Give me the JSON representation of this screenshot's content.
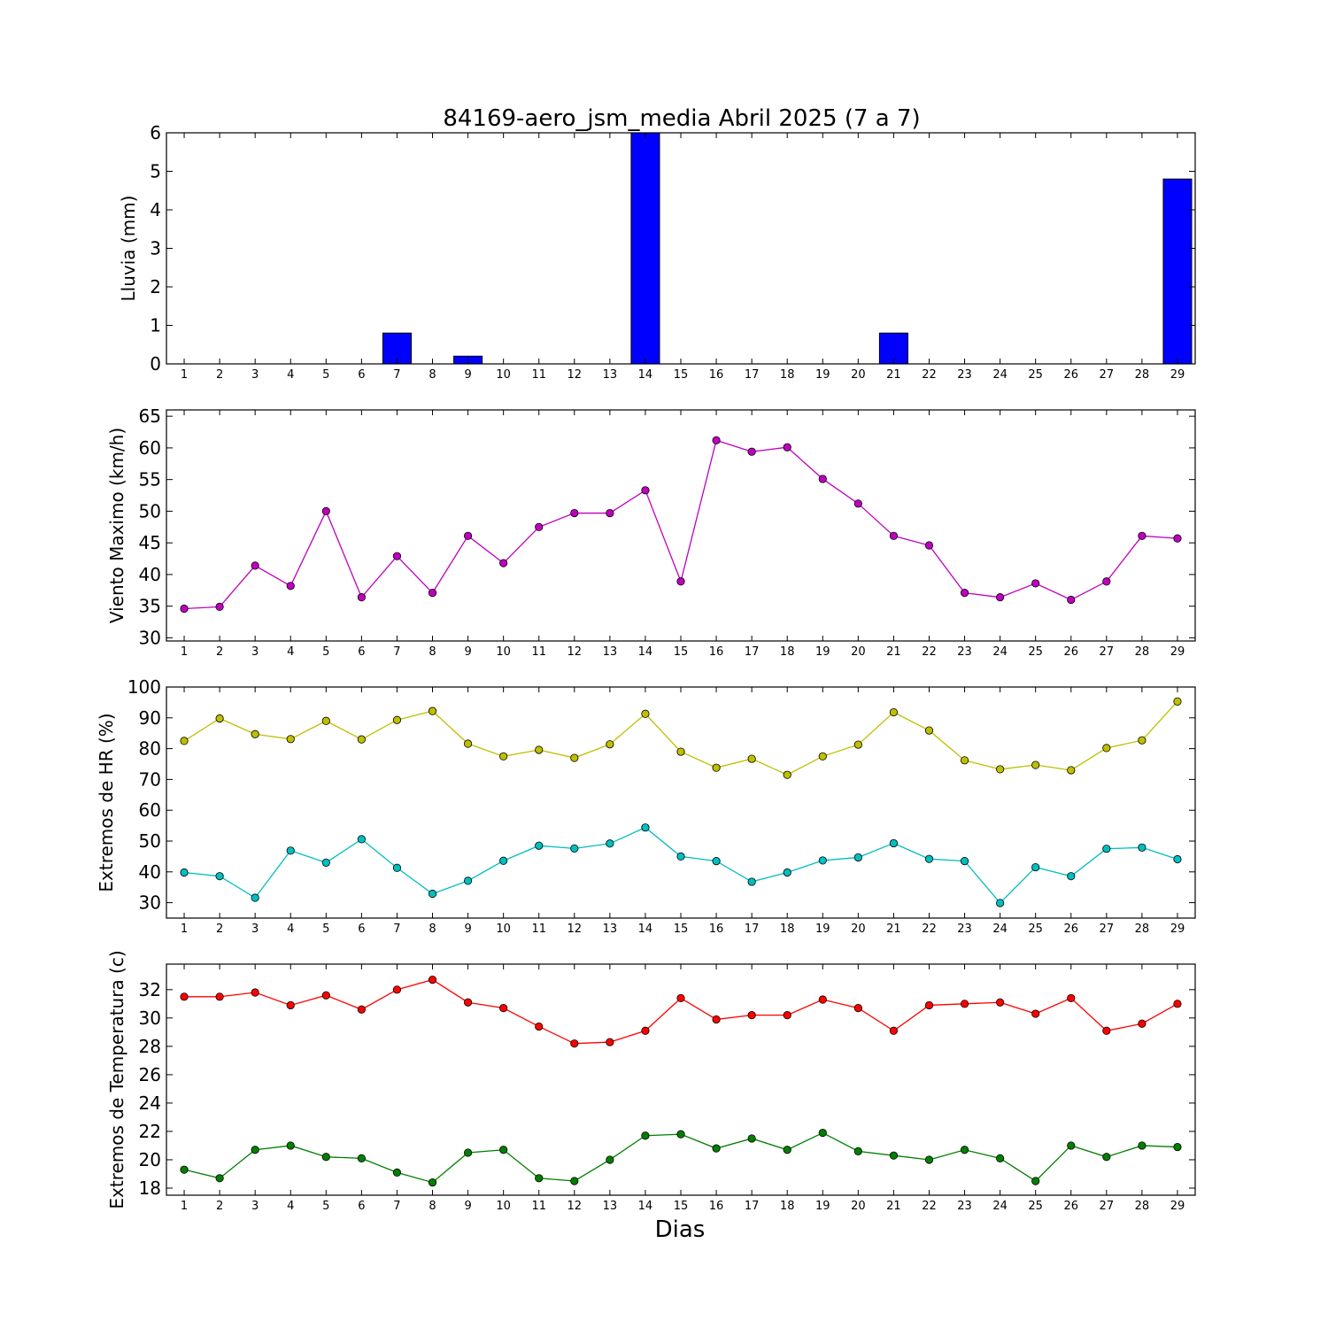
{
  "title": "84169-aero_jsm_media Abril 2025  (7 a 7)",
  "xlabel": "Dias",
  "chart_data": [
    {
      "type": "bar",
      "ylabel": "Lluvia (mm)",
      "ylim": [
        0,
        6
      ],
      "yticks": [
        0,
        1,
        2,
        3,
        4,
        5,
        6
      ],
      "x": [
        1,
        2,
        3,
        4,
        5,
        6,
        7,
        8,
        9,
        10,
        11,
        12,
        13,
        14,
        15,
        16,
        17,
        18,
        19,
        20,
        21,
        22,
        23,
        24,
        25,
        26,
        27,
        28,
        29
      ],
      "series": [
        {
          "color": "#0000ff",
          "values": [
            0,
            0,
            0,
            0,
            0,
            0,
            0.8,
            0,
            0.2,
            0,
            0,
            0,
            0,
            6.0,
            0,
            0,
            0,
            0,
            0,
            0,
            0.8,
            0,
            0,
            0,
            0,
            0,
            0,
            0,
            4.8
          ]
        }
      ]
    },
    {
      "type": "line",
      "ylabel": "Viento Maximo (km/h)",
      "ylim": [
        29.5,
        66
      ],
      "yticks": [
        30,
        35,
        40,
        45,
        50,
        55,
        60,
        65
      ],
      "x": [
        1,
        2,
        3,
        4,
        5,
        6,
        7,
        8,
        9,
        10,
        11,
        12,
        13,
        14,
        15,
        16,
        17,
        18,
        19,
        20,
        21,
        22,
        23,
        24,
        25,
        26,
        27,
        28,
        29
      ],
      "series": [
        {
          "color": "#bf00bf",
          "values": [
            34.6,
            34.9,
            41.4,
            38.2,
            50.0,
            36.4,
            42.9,
            37.1,
            46.1,
            41.8,
            47.5,
            49.7,
            49.7,
            53.3,
            38.9,
            61.2,
            59.4,
            60.1,
            55.1,
            51.2,
            46.1,
            44.6,
            37.1,
            36.4,
            38.6,
            36.0,
            38.9,
            46.1,
            45.7
          ]
        }
      ]
    },
    {
      "type": "line",
      "ylabel": "Extremos de HR (%)",
      "ylim": [
        25,
        100
      ],
      "yticks": [
        30,
        40,
        50,
        60,
        70,
        80,
        90,
        100
      ],
      "x": [
        1,
        2,
        3,
        4,
        5,
        6,
        7,
        8,
        9,
        10,
        11,
        12,
        13,
        14,
        15,
        16,
        17,
        18,
        19,
        20,
        21,
        22,
        23,
        24,
        25,
        26,
        27,
        28,
        29
      ],
      "series": [
        {
          "color": "#bfbf00",
          "values": [
            82.5,
            89.8,
            84.7,
            83.1,
            89.0,
            83.0,
            89.3,
            92.2,
            81.6,
            77.5,
            79.6,
            77.0,
            81.4,
            91.3,
            79.0,
            73.8,
            76.7,
            71.5,
            77.5,
            81.3,
            91.8,
            85.9,
            76.2,
            73.3,
            74.7,
            73.0,
            80.2,
            82.7,
            95.3
          ]
        },
        {
          "color": "#00bfbf",
          "values": [
            39.8,
            38.6,
            31.6,
            46.9,
            43.0,
            50.6,
            41.3,
            32.9,
            37.1,
            43.6,
            48.5,
            47.6,
            49.2,
            54.4,
            45.0,
            43.5,
            36.8,
            39.8,
            43.7,
            44.7,
            49.3,
            44.2,
            43.5,
            29.9,
            41.5,
            38.6,
            47.5,
            47.9,
            44.1
          ]
        }
      ]
    },
    {
      "type": "line",
      "ylabel": "Extremos de Temperatura (c)",
      "ylim": [
        17.5,
        33.8
      ],
      "yticks": [
        18,
        20,
        22,
        24,
        26,
        28,
        30,
        32
      ],
      "x": [
        1,
        2,
        3,
        4,
        5,
        6,
        7,
        8,
        9,
        10,
        11,
        12,
        13,
        14,
        15,
        16,
        17,
        18,
        19,
        20,
        21,
        22,
        23,
        24,
        25,
        26,
        27,
        28,
        29
      ],
      "series": [
        {
          "color": "#ff0000",
          "values": [
            31.5,
            31.5,
            31.8,
            30.9,
            31.6,
            30.6,
            32.0,
            32.7,
            31.1,
            30.7,
            29.4,
            28.2,
            28.3,
            29.1,
            31.4,
            29.9,
            30.2,
            30.2,
            31.3,
            30.7,
            29.1,
            30.9,
            31.0,
            31.1,
            30.3,
            31.4,
            29.1,
            29.6,
            31.0
          ]
        },
        {
          "color": "#007f00",
          "values": [
            19.3,
            18.7,
            20.7,
            21.0,
            20.2,
            20.1,
            19.1,
            18.4,
            20.5,
            20.7,
            18.7,
            18.5,
            20.0,
            21.7,
            21.8,
            20.8,
            21.5,
            20.7,
            21.9,
            20.6,
            20.3,
            20.0,
            20.7,
            20.1,
            18.5,
            21.0,
            20.2,
            21.0,
            20.9
          ]
        }
      ]
    }
  ]
}
